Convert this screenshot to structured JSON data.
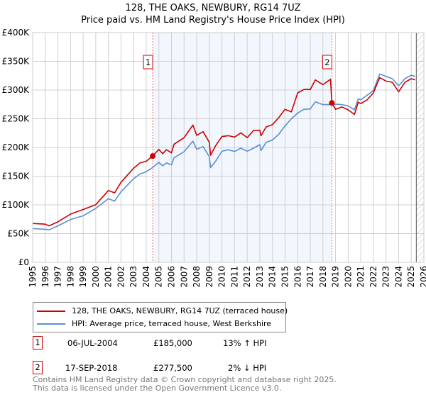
{
  "title": "128, THE OAKS, NEWBURY, RG14 7UZ",
  "subtitle": "Price paid vs. HM Land Registry's House Price Index (HPI)",
  "chart_data": {
    "type": "line",
    "title": "128, THE OAKS, NEWBURY, RG14 7UZ",
    "subtitle": "Price paid vs. HM Land Registry's House Price Index (HPI)",
    "xlim": [
      1995,
      2026
    ],
    "ylim": [
      0,
      400000
    ],
    "x_ticks": [
      "1995",
      "1996",
      "1997",
      "1998",
      "1999",
      "2000",
      "2001",
      "2002",
      "2003",
      "2004",
      "2005",
      "2006",
      "2007",
      "2008",
      "2009",
      "2010",
      "2011",
      "2012",
      "2013",
      "2014",
      "2015",
      "2016",
      "2017",
      "2018",
      "2019",
      "2020",
      "2021",
      "2022",
      "2023",
      "2024",
      "2025",
      "2026"
    ],
    "y_ticks": [
      {
        "v": 0,
        "label": "£0"
      },
      {
        "v": 50000,
        "label": "£50K"
      },
      {
        "v": 100000,
        "label": "£100K"
      },
      {
        "v": 150000,
        "label": "£150K"
      },
      {
        "v": 200000,
        "label": "£200K"
      },
      {
        "v": 250000,
        "label": "£250K"
      },
      {
        "v": 300000,
        "label": "£300K"
      },
      {
        "v": 350000,
        "label": "£350K"
      },
      {
        "v": 400000,
        "label": "£400K"
      }
    ],
    "grid": true,
    "shaded_period": [
      2004.51,
      2018.71
    ],
    "hatched_from": 2025.4,
    "x": [
      1995,
      1996,
      1996.3,
      1997,
      1998,
      1999,
      2000,
      2001,
      2001.5,
      2002,
      2003,
      2003.5,
      2004,
      2004.51,
      2005,
      2005.3,
      2005.6,
      2006,
      2006.2,
      2007,
      2007.7,
      2008,
      2008.5,
      2009,
      2009.1,
      2009.5,
      2010,
      2010.5,
      2011,
      2011.5,
      2012,
      2012.5,
      2013,
      2013.1,
      2013.5,
      2014,
      2014.5,
      2015,
      2015.5,
      2016,
      2016.5,
      2017,
      2017.4,
      2018,
      2018.6,
      2018.71,
      2019,
      2019.5,
      2020,
      2020.5,
      2020.8,
      2021,
      2021.5,
      2022,
      2022.5,
      2023,
      2023.5,
      2024,
      2024.5,
      2025,
      2025.3
    ],
    "series": [
      {
        "name": "128, THE OAKS, NEWBURY, RG14 7UZ (terraced house)",
        "color": "#cc0000",
        "values": [
          67600,
          66400,
          63500,
          70500,
          84000,
          92000,
          100400,
          125000,
          121000,
          139300,
          164000,
          173000,
          176000,
          185000,
          196700,
          189000,
          196000,
          190600,
          205700,
          217000,
          239000,
          221000,
          227500,
          209000,
          186500,
          203000,
          219000,
          220500,
          218000,
          225400,
          217000,
          229500,
          230000,
          220500,
          235700,
          239800,
          252000,
          266400,
          262000,
          295000,
          301000,
          301000,
          317600,
          309400,
          318800,
          277500,
          266400,
          270500,
          265600,
          257400,
          278700,
          276600,
          282800,
          295000,
          321700,
          315600,
          313500,
          297000,
          313500,
          319700,
          317600
        ]
      },
      {
        "name": "HPI: Average price, terraced house, West Berkshire",
        "color": "#5b8fd4",
        "values": [
          58600,
          57500,
          56500,
          63500,
          74600,
          81000,
          94000,
          110700,
          106500,
          123000,
          145500,
          153700,
          157800,
          165000,
          174000,
          168000,
          173000,
          169700,
          182000,
          192600,
          211000,
          196700,
          201600,
          184000,
          164800,
          176000,
          193400,
          196000,
          193000,
          198800,
          193400,
          198800,
          205000,
          194700,
          209000,
          213000,
          223000,
          237700,
          250000,
          260000,
          266400,
          267000,
          279500,
          274600,
          274600,
          274600,
          275400,
          274600,
          272500,
          265600,
          284800,
          282800,
          291000,
          299000,
          327900,
          323800,
          319700,
          307400,
          319700,
          325800,
          323800
        ]
      }
    ],
    "sales": [
      {
        "id": "1",
        "x": 2004.51,
        "value": 185000
      },
      {
        "id": "2",
        "x": 2018.71,
        "value": 277500
      }
    ]
  },
  "legend": [
    {
      "label": "128, THE OAKS, NEWBURY, RG14 7UZ (terraced house)",
      "color": "#cc0000"
    },
    {
      "label": "HPI: Average price, terraced house, West Berkshire",
      "color": "#5b8fd4"
    }
  ],
  "transactions": [
    {
      "id": "1",
      "date": "06-JUL-2004",
      "price": "£185,000",
      "hpi": "13% ↑ HPI"
    },
    {
      "id": "2",
      "date": "17-SEP-2018",
      "price": "£277,500",
      "hpi": "2% ↓ HPI"
    }
  ],
  "footer": {
    "line1": "Contains HM Land Registry data © Crown copyright and database right 2025.",
    "line2": "This data is licensed under the Open Government Licence v3.0."
  }
}
